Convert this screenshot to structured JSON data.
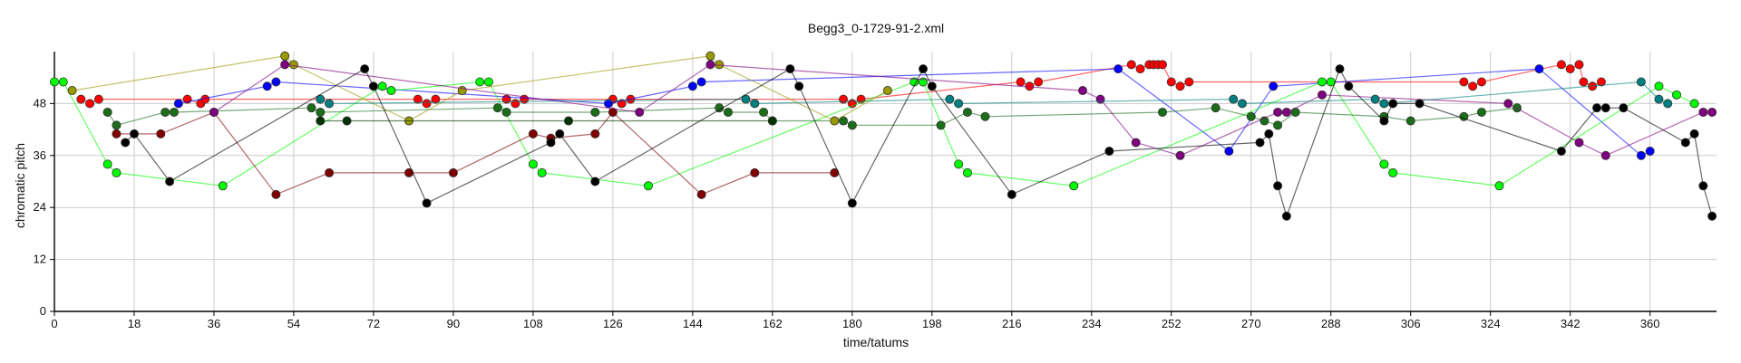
{
  "chart_data": {
    "type": "scatter",
    "title": "Begg3_0-1729-91-2.xml",
    "xlabel": "time/tatums",
    "ylabel": "chromatic pitch",
    "xlim": [
      0,
      375
    ],
    "ylim": [
      0,
      60
    ],
    "x_ticks": [
      0,
      18,
      36,
      54,
      72,
      90,
      108,
      126,
      144,
      162,
      180,
      198,
      216,
      234,
      252,
      270,
      288,
      306,
      324,
      342,
      360
    ],
    "y_ticks": [
      0,
      12,
      24,
      36,
      48
    ],
    "grid": true,
    "legend": "none",
    "series": [
      {
        "color": "#ff0000",
        "values": [
          [
            6,
            49
          ],
          [
            8,
            48
          ],
          [
            10,
            49
          ],
          [
            30,
            49
          ],
          [
            33,
            48
          ],
          [
            34,
            49
          ],
          [
            82,
            49
          ],
          [
            84,
            48
          ],
          [
            86,
            49
          ],
          [
            102,
            49
          ],
          [
            104,
            48
          ],
          [
            106,
            49
          ],
          [
            126,
            49
          ],
          [
            128,
            48
          ],
          [
            130,
            49
          ],
          [
            178,
            49
          ],
          [
            180,
            48
          ],
          [
            182,
            49
          ],
          [
            218,
            53
          ],
          [
            220,
            52
          ],
          [
            222,
            53
          ],
          [
            243,
            57
          ],
          [
            245,
            56
          ],
          [
            247,
            57
          ],
          [
            248,
            57
          ],
          [
            249,
            57
          ],
          [
            250,
            57
          ],
          [
            252,
            53
          ],
          [
            254,
            52
          ],
          [
            256,
            53
          ],
          [
            318,
            53
          ],
          [
            320,
            52
          ],
          [
            322,
            53
          ],
          [
            340,
            57
          ],
          [
            342,
            56
          ],
          [
            344,
            57
          ],
          [
            345,
            53
          ],
          [
            347,
            52
          ],
          [
            349,
            53
          ]
        ]
      },
      {
        "color": "#0000ff",
        "values": [
          [
            28,
            48
          ],
          [
            48,
            52
          ],
          [
            50,
            53
          ],
          [
            125,
            48
          ],
          [
            144,
            52
          ],
          [
            146,
            53
          ],
          [
            240,
            56
          ],
          [
            265,
            37
          ],
          [
            275,
            52
          ],
          [
            335,
            56
          ],
          [
            358,
            36
          ],
          [
            360,
            37
          ]
        ]
      },
      {
        "color": "#00ff00",
        "values": [
          [
            0,
            53
          ],
          [
            2,
            53
          ],
          [
            12,
            34
          ],
          [
            14,
            32
          ],
          [
            38,
            29
          ],
          [
            74,
            52
          ],
          [
            76,
            51
          ],
          [
            96,
            53
          ],
          [
            98,
            53
          ],
          [
            108,
            34
          ],
          [
            110,
            32
          ],
          [
            134,
            29
          ],
          [
            194,
            53
          ],
          [
            196,
            53
          ],
          [
            204,
            34
          ],
          [
            206,
            32
          ],
          [
            230,
            29
          ],
          [
            286,
            53
          ],
          [
            288,
            53
          ],
          [
            300,
            34
          ],
          [
            302,
            32
          ],
          [
            326,
            29
          ],
          [
            362,
            52
          ],
          [
            366,
            50
          ],
          [
            370,
            48
          ]
        ]
      },
      {
        "color": "#1a6e1a",
        "values": [
          [
            12,
            46
          ],
          [
            14,
            43
          ],
          [
            25,
            46
          ],
          [
            27,
            46
          ],
          [
            58,
            47
          ],
          [
            60,
            46
          ],
          [
            100,
            47
          ],
          [
            102,
            46
          ],
          [
            122,
            46
          ],
          [
            150,
            47
          ],
          [
            152,
            46
          ],
          [
            160,
            46
          ],
          [
            162,
            44
          ],
          [
            178,
            44
          ],
          [
            180,
            43
          ],
          [
            200,
            43
          ],
          [
            206,
            46
          ],
          [
            210,
            45
          ],
          [
            250,
            46
          ],
          [
            262,
            47
          ],
          [
            270,
            45
          ],
          [
            273,
            44
          ],
          [
            276,
            43
          ],
          [
            280,
            46
          ],
          [
            300,
            45
          ],
          [
            306,
            44
          ],
          [
            318,
            45
          ],
          [
            322,
            46
          ],
          [
            330,
            47
          ]
        ]
      },
      {
        "color": "#800000",
        "values": [
          [
            14,
            41
          ],
          [
            24,
            41
          ],
          [
            36,
            46
          ],
          [
            50,
            27
          ],
          [
            62,
            32
          ],
          [
            80,
            32
          ],
          [
            90,
            32
          ],
          [
            108,
            41
          ],
          [
            112,
            40
          ],
          [
            122,
            41
          ],
          [
            126,
            46
          ],
          [
            146,
            27
          ],
          [
            158,
            32
          ],
          [
            176,
            32
          ]
        ]
      },
      {
        "color": "#999900",
        "values": [
          [
            4,
            51
          ],
          [
            52,
            59
          ],
          [
            54,
            57
          ],
          [
            80,
            44
          ],
          [
            92,
            51
          ],
          [
            148,
            59
          ],
          [
            150,
            57
          ],
          [
            176,
            44
          ],
          [
            188,
            51
          ]
        ]
      },
      {
        "color": "#800080",
        "values": [
          [
            36,
            46
          ],
          [
            52,
            57
          ],
          [
            132,
            46
          ],
          [
            148,
            57
          ],
          [
            232,
            51
          ],
          [
            236,
            49
          ],
          [
            244,
            39
          ],
          [
            254,
            36
          ],
          [
            276,
            46
          ],
          [
            278,
            46
          ],
          [
            286,
            50
          ],
          [
            328,
            48
          ],
          [
            344,
            39
          ],
          [
            350,
            36
          ],
          [
            372,
            46
          ],
          [
            374,
            46
          ]
        ]
      },
      {
        "color": "#008080",
        "values": [
          [
            60,
            49
          ],
          [
            62,
            48
          ],
          [
            156,
            49
          ],
          [
            158,
            48
          ],
          [
            202,
            49
          ],
          [
            204,
            48
          ],
          [
            266,
            49
          ],
          [
            268,
            48
          ],
          [
            298,
            49
          ],
          [
            300,
            48
          ],
          [
            358,
            53
          ],
          [
            362,
            49
          ],
          [
            364,
            48
          ]
        ]
      },
      {
        "color": "#000000",
        "values": [
          [
            16,
            39
          ],
          [
            18,
            41
          ],
          [
            26,
            30
          ],
          [
            70,
            56
          ],
          [
            72,
            52
          ],
          [
            84,
            25
          ],
          [
            112,
            39
          ],
          [
            114,
            41
          ],
          [
            122,
            30
          ],
          [
            166,
            56
          ],
          [
            168,
            52
          ],
          [
            180,
            25
          ],
          [
            196,
            56
          ],
          [
            198,
            52
          ],
          [
            216,
            27
          ],
          [
            238,
            37
          ],
          [
            272,
            39
          ],
          [
            274,
            41
          ],
          [
            276,
            29
          ],
          [
            278,
            22
          ],
          [
            290,
            56
          ],
          [
            292,
            52
          ],
          [
            300,
            44
          ],
          [
            302,
            48
          ],
          [
            308,
            48
          ],
          [
            340,
            37
          ],
          [
            348,
            47
          ],
          [
            350,
            47
          ],
          [
            354,
            47
          ],
          [
            368,
            39
          ],
          [
            370,
            41
          ],
          [
            372,
            29
          ],
          [
            374,
            22
          ]
        ]
      },
      {
        "color": "#003300",
        "values": [
          [
            60,
            44
          ],
          [
            66,
            44
          ],
          [
            116,
            44
          ],
          [
            162,
            44
          ]
        ]
      }
    ]
  }
}
